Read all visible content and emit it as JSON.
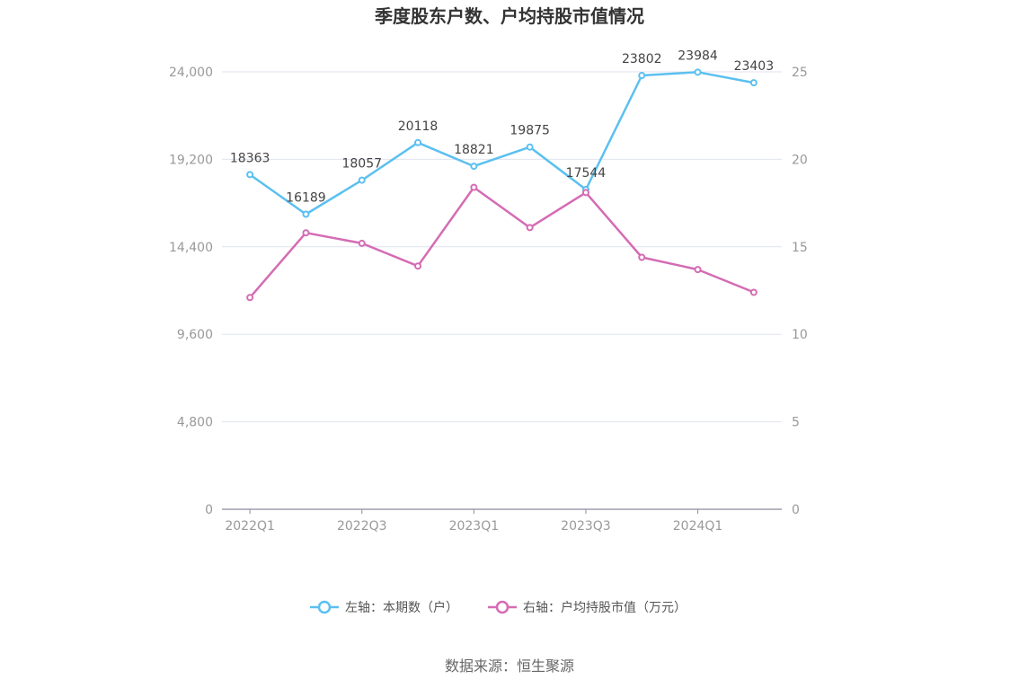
{
  "chart_data": {
    "type": "line",
    "title": "季度股东户数、户均持股市值情况",
    "categories": [
      "2022Q1",
      "2022Q2",
      "2022Q3",
      "2022Q4",
      "2023Q1",
      "2023Q2",
      "2023Q3",
      "2023Q4",
      "2024Q1",
      "2024Q2"
    ],
    "x_tick_labels": [
      "2022Q1",
      "2022Q3",
      "2023Q1",
      "2023Q3",
      "2024Q1"
    ],
    "y_left": {
      "ticks": [
        "0",
        "4,800",
        "9,600",
        "14,400",
        "19,200",
        "24,000"
      ],
      "ylim": [
        0,
        24000
      ]
    },
    "y_right": {
      "ticks": [
        "0",
        "5",
        "10",
        "15",
        "20",
        "25"
      ],
      "ylim": [
        0,
        25
      ]
    },
    "grid": true,
    "legend_position": "bottom",
    "series": [
      {
        "name": "左轴：本期数（户）",
        "axis": "left",
        "color": "#5bc0f0",
        "values": [
          18363,
          16189,
          18057,
          20118,
          18821,
          19875,
          17544,
          23802,
          23984,
          23403
        ],
        "labels": [
          "18363",
          "16189",
          "18057",
          "20118",
          "18821",
          "19875",
          "17544",
          "23802",
          "23984",
          "23403"
        ]
      },
      {
        "name": "右轴：户均持股市值（万元）",
        "axis": "right",
        "color": "#d46cb4",
        "values": [
          12.1,
          15.8,
          15.2,
          13.9,
          18.4,
          16.1,
          18.1,
          14.4,
          13.7,
          12.4
        ]
      }
    ],
    "source": "数据来源：恒生聚源"
  }
}
